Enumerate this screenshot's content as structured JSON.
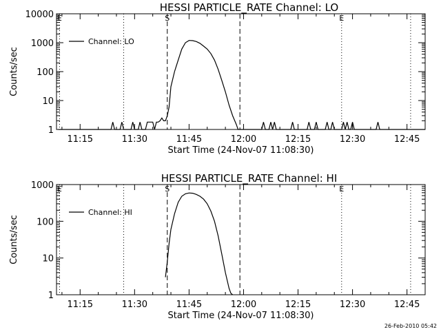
{
  "timestamp": "26-Feb-2010 05:42",
  "chart_data": [
    {
      "type": "line",
      "title": "HESSI PARTICLE_RATE Channel: LO",
      "xlabel": "Start Time (24-Nov-07 11:08:30)",
      "ylabel": "Counts/sec",
      "yscale": "log",
      "xlim": [
        "11:08:30",
        "12:50:00"
      ],
      "ylim": [
        1,
        10000
      ],
      "xticks": [
        "11:15",
        "11:30",
        "11:45",
        "12:00",
        "12:15",
        "12:30",
        "12:45"
      ],
      "yticks": [
        "1",
        "10",
        "100",
        "1000",
        "10000"
      ],
      "legend": {
        "position": "top-left",
        "entries": [
          "Channel: LO"
        ]
      },
      "markers": [
        {
          "time": "11:09:20",
          "label": "E",
          "style": "dotted"
        },
        {
          "time": "11:27:00",
          "label": "",
          "style": "dotted"
        },
        {
          "time": "11:39:00",
          "label": "S",
          "style": "dashed"
        },
        {
          "time": "11:59:00",
          "label": "",
          "style": "dashed"
        },
        {
          "time": "12:27:00",
          "label": "E",
          "style": "dotted"
        },
        {
          "time": "12:46:00",
          "label": "",
          "style": "dotted"
        }
      ],
      "series": [
        {
          "x": [
            "11:09:00",
            "11:23:30",
            "11:24:00",
            "11:24:30",
            "11:26:00",
            "11:26:30",
            "11:27:00",
            "11:27:30",
            "11:29:00",
            "11:29:30",
            "11:30:00",
            "11:31:00",
            "11:31:30",
            "11:32:00",
            "11:33:00",
            "11:33:30",
            "11:34:00",
            "11:34:30",
            "11:35:00",
            "11:35:30",
            "11:36:00",
            "11:36:30",
            "11:37:00",
            "11:37:30",
            "11:38:00",
            "11:38:30",
            "11:39:00",
            "11:39:30",
            "11:40:00",
            "11:41:00",
            "11:42:00",
            "11:43:00",
            "11:44:00",
            "11:45:00",
            "11:46:00",
            "11:47:00",
            "11:48:00",
            "11:49:00",
            "11:50:00",
            "11:51:00",
            "11:52:00",
            "11:53:00",
            "11:54:00",
            "11:55:00",
            "11:56:00",
            "11:57:00",
            "11:58:00",
            "11:58:30",
            "12:05:00",
            "12:05:30",
            "12:06:00",
            "12:07:00",
            "12:07:30",
            "12:08:00",
            "12:08:30",
            "12:09:00",
            "12:10:00",
            "12:10:30",
            "12:11:00",
            "12:13:00",
            "12:13:30",
            "12:14:00",
            "12:15:00",
            "12:15:30",
            "12:16:00",
            "12:17:30",
            "12:18:00",
            "12:18:30",
            "12:19:30",
            "12:20:00",
            "12:20:30",
            "12:22:30",
            "12:23:00",
            "12:23:30",
            "12:24:00",
            "12:24:30",
            "12:25:00",
            "12:27:00",
            "12:27:30",
            "12:28:00",
            "12:28:30",
            "12:29:00",
            "12:29:30",
            "12:30:00",
            "12:30:30",
            "12:31:00",
            "12:36:30",
            "12:37:00",
            "12:37:30",
            "12:50:00"
          ],
          "values": [
            1,
            1,
            1.8,
            1,
            1,
            1.8,
            1,
            1,
            1,
            1.8,
            1,
            1,
            1.8,
            1,
            1,
            1.8,
            1.8,
            1.8,
            1.8,
            1,
            1.8,
            1.8,
            2,
            2.5,
            2,
            2,
            3,
            6,
            30,
            100,
            250,
            600,
            1000,
            1200,
            1180,
            1100,
            950,
            760,
            600,
            420,
            250,
            120,
            50,
            20,
            7,
            3,
            1.5,
            1,
            1,
            1.8,
            1,
            1,
            1.8,
            1,
            1.8,
            1,
            1,
            1,
            1,
            1,
            1.8,
            1,
            1,
            1,
            1,
            1,
            1.8,
            1,
            1,
            1.8,
            1,
            1,
            1.8,
            1,
            1,
            1.8,
            1,
            1,
            1.8,
            1,
            1.8,
            1,
            1,
            1.8,
            1,
            1,
            1,
            1.8,
            1,
            1
          ]
        }
      ]
    },
    {
      "type": "line",
      "title": "HESSI PARTICLE_RATE Channel: HI",
      "xlabel": "Start Time (24-Nov-07 11:08:30)",
      "ylabel": "Counts/sec",
      "yscale": "log",
      "xlim": [
        "11:08:30",
        "12:50:00"
      ],
      "ylim": [
        1,
        1000
      ],
      "xticks": [
        "11:15",
        "11:30",
        "11:45",
        "12:00",
        "12:15",
        "12:30",
        "12:45"
      ],
      "yticks": [
        "1",
        "10",
        "100",
        "1000"
      ],
      "legend": {
        "position": "top-left",
        "entries": [
          "Channel: HI"
        ]
      },
      "markers": [
        {
          "time": "11:09:20",
          "label": "E",
          "style": "dotted"
        },
        {
          "time": "11:27:00",
          "label": "",
          "style": "dotted"
        },
        {
          "time": "11:39:00",
          "label": "S",
          "style": "dashed"
        },
        {
          "time": "11:59:00",
          "label": "",
          "style": "dashed"
        },
        {
          "time": "12:27:00",
          "label": "E",
          "style": "dotted"
        },
        {
          "time": "12:46:00",
          "label": "",
          "style": "dotted"
        }
      ],
      "series": [
        {
          "x": [
            "11:38:30",
            "11:39:00",
            "11:39:30",
            "11:40:00",
            "11:41:00",
            "11:42:00",
            "11:43:00",
            "11:44:00",
            "11:45:00",
            "11:46:00",
            "11:47:00",
            "11:48:00",
            "11:49:00",
            "11:50:00",
            "11:51:00",
            "11:52:00",
            "11:53:00",
            "11:54:00",
            "11:55:00",
            "11:56:00",
            "11:56:30",
            "11:57:00"
          ],
          "values": [
            3,
            8,
            25,
            60,
            160,
            330,
            480,
            560,
            590,
            580,
            540,
            480,
            400,
            300,
            190,
            100,
            40,
            13,
            4,
            1.5,
            1.1,
            1
          ]
        }
      ]
    }
  ]
}
